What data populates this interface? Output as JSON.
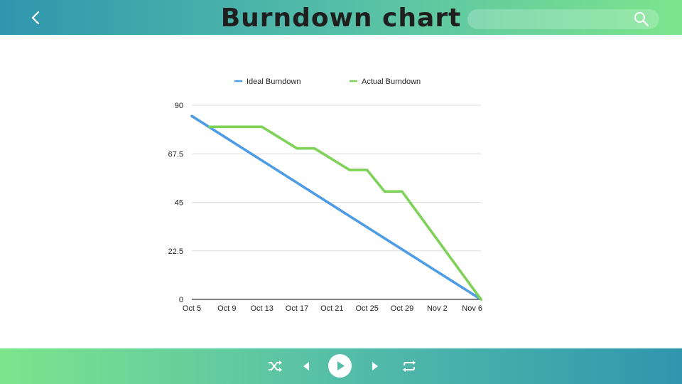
{
  "header": {
    "title": "Burndown chart",
    "search_placeholder": "",
    "icons": {
      "back": "chevron-left-icon",
      "search": "search-icon"
    }
  },
  "chart_data": {
    "type": "line",
    "title": "",
    "xlabel": "",
    "ylabel": "",
    "ylim": [
      0,
      90
    ],
    "yticks": [
      0,
      22.5,
      45,
      67.5,
      90
    ],
    "ytick_labels": [
      "0",
      "22.5",
      "45",
      "67.5",
      "90"
    ],
    "xlim": [
      "Oct 5",
      "Nov 7"
    ],
    "xticks": [
      "Oct 5",
      "Oct 9",
      "Oct 13",
      "Oct 17",
      "Oct 21",
      "Oct 25",
      "Oct 29",
      "Nov 2",
      "Nov 6"
    ],
    "grid": "horizontal",
    "legend_position": "top",
    "series": [
      {
        "name": "Ideal Burndown",
        "color": "#4e9be6",
        "points": [
          [
            "Oct 5",
            85
          ],
          [
            "Nov 7",
            0
          ]
        ]
      },
      {
        "name": "Actual Burndown",
        "color": "#7ed257",
        "points": [
          [
            "Oct 7",
            80
          ],
          [
            "Oct 13",
            80
          ],
          [
            "Oct 17",
            70
          ],
          [
            "Oct 19",
            70
          ],
          [
            "Oct 23",
            60
          ],
          [
            "Oct 25",
            60
          ],
          [
            "Oct 27",
            50
          ],
          [
            "Oct 29",
            50
          ],
          [
            "Nov 7",
            0
          ]
        ]
      }
    ]
  },
  "player": {
    "icons": {
      "shuffle": "shuffle-icon",
      "previous": "previous-icon",
      "play": "play-icon",
      "next": "next-icon",
      "repeat": "repeat-icon"
    }
  }
}
